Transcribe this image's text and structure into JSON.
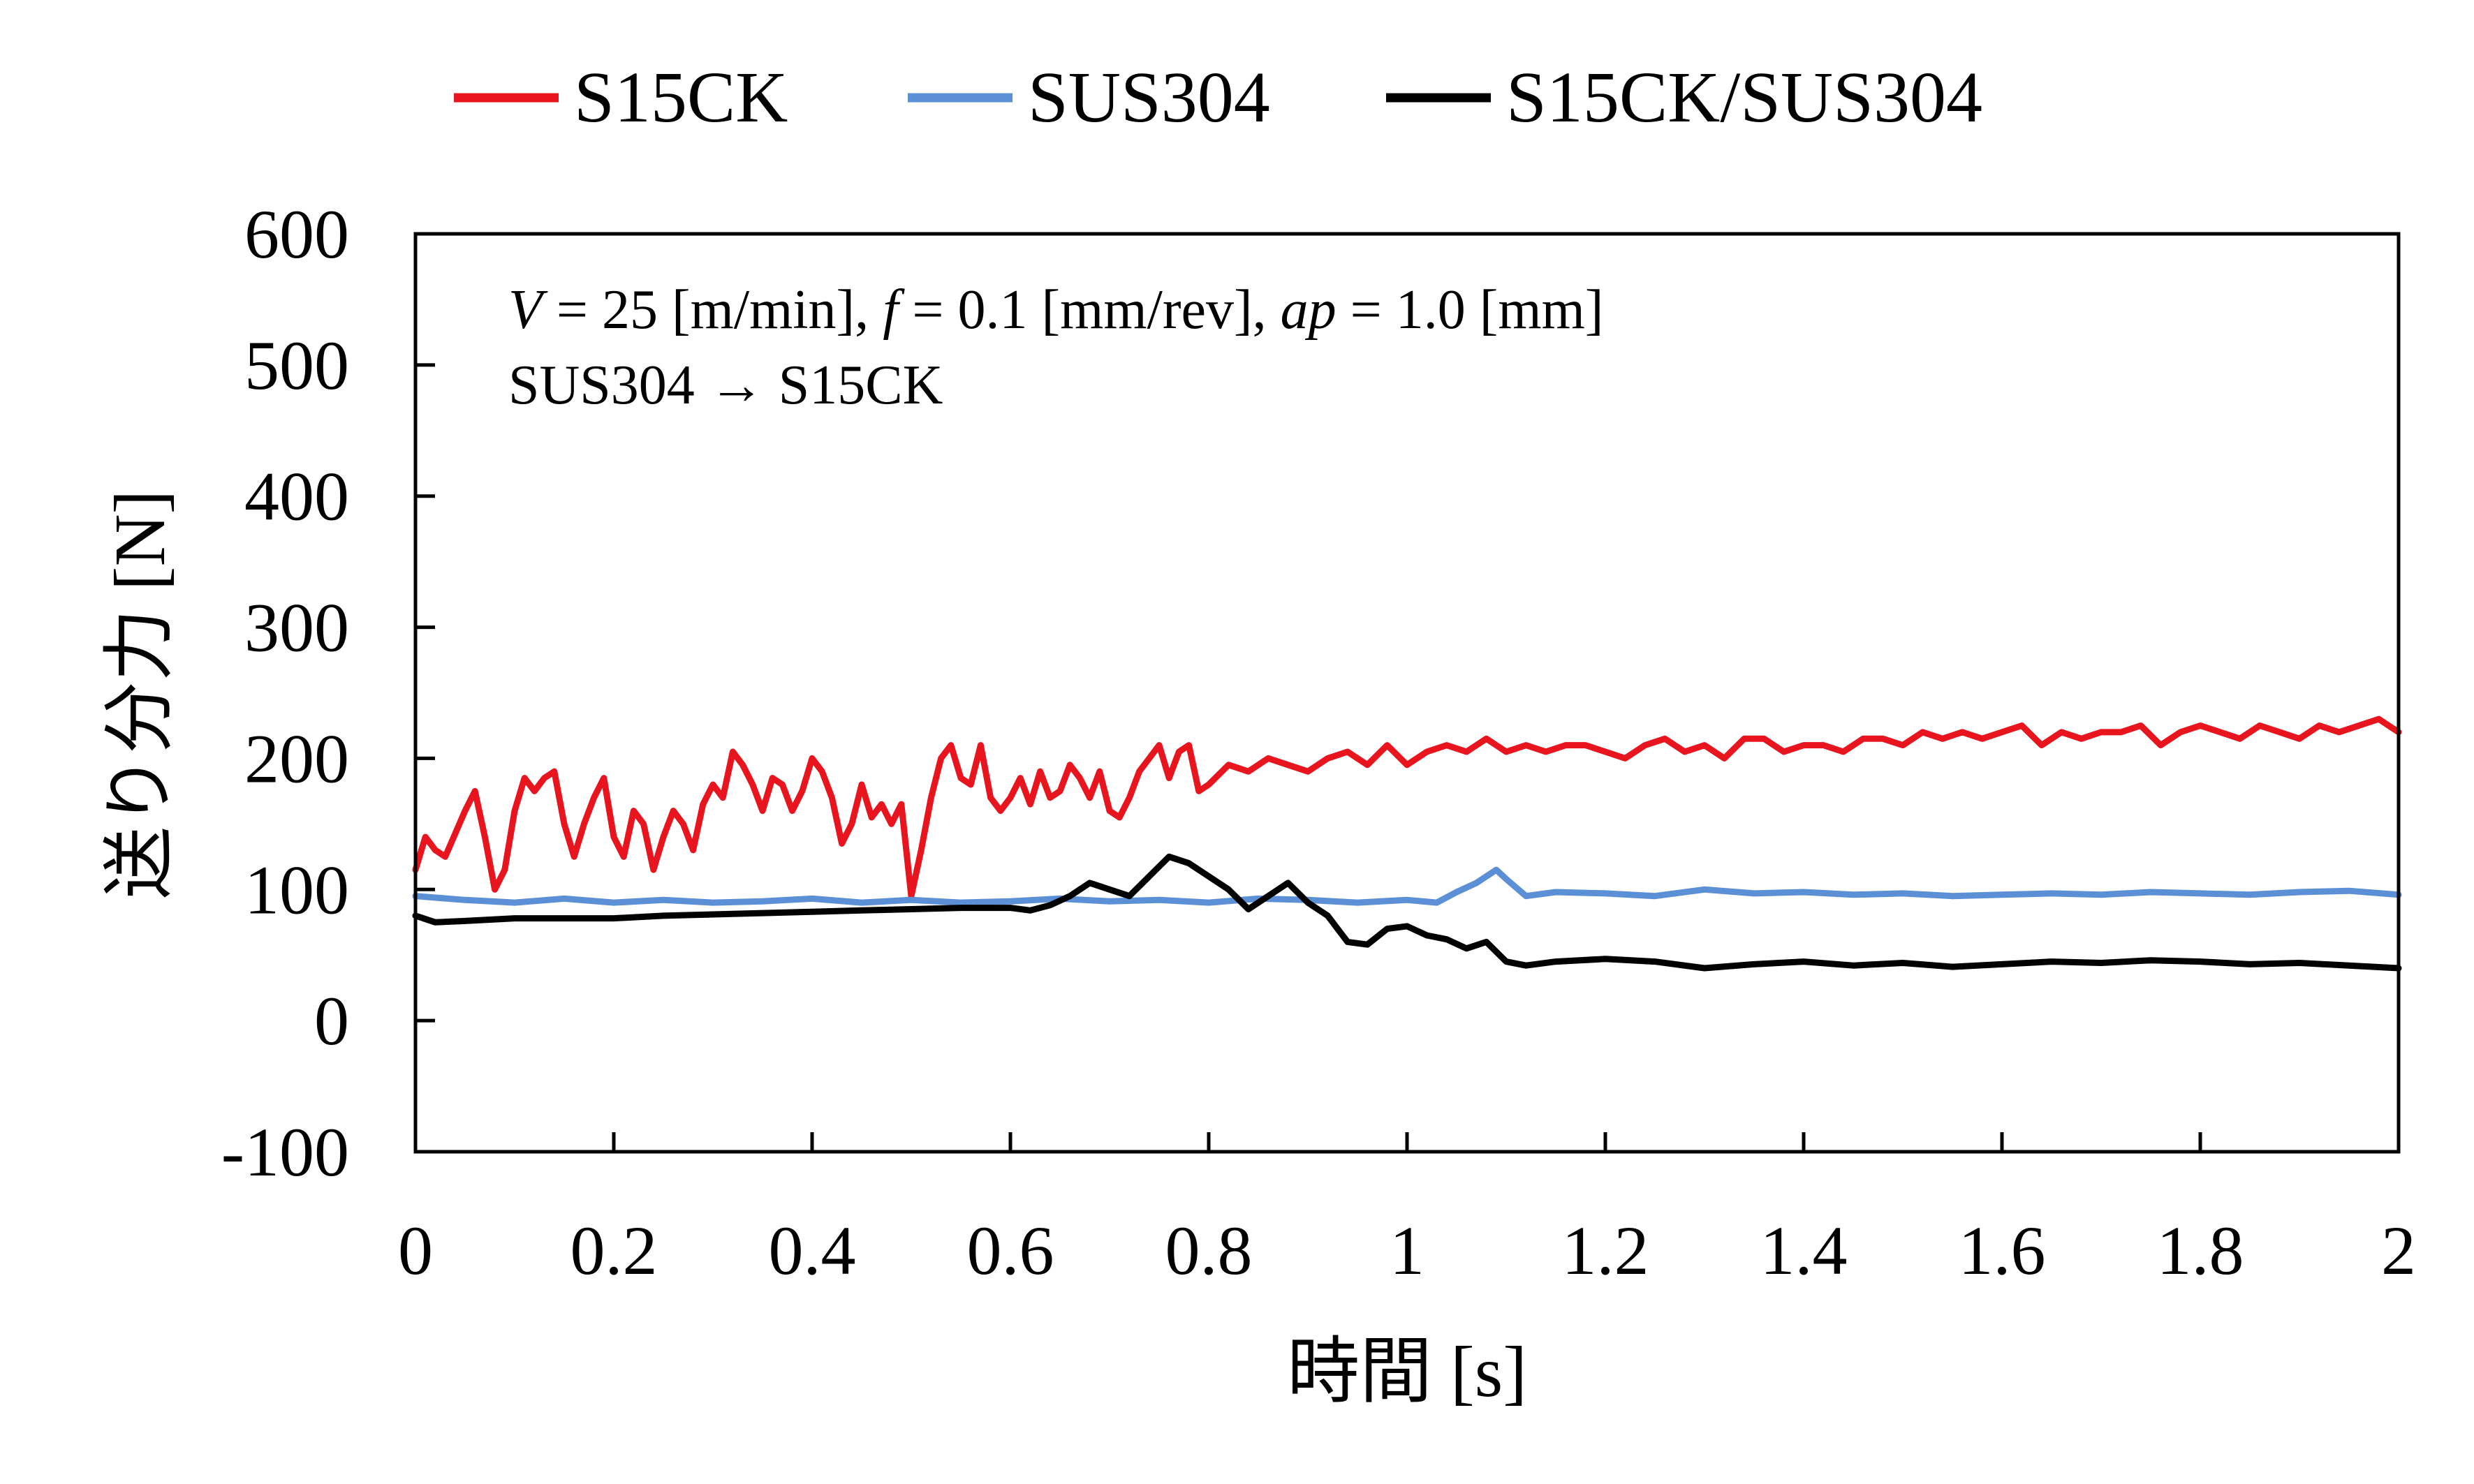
{
  "chart_data": {
    "type": "line",
    "title": "",
    "xlabel": "時間 [s]",
    "ylabel": "送り分力 [N]",
    "xlim": [
      0,
      2
    ],
    "ylim": [
      -100,
      600
    ],
    "xticks": [
      "0",
      "0.2",
      "0.4",
      "0.6",
      "0.8",
      "1",
      "1.2",
      "1.4",
      "1.6",
      "1.8",
      "2"
    ],
    "yticks": [
      "-100",
      "0",
      "100",
      "200",
      "300",
      "400",
      "500",
      "600"
    ],
    "legend": {
      "position": "top-center"
    },
    "grid": false,
    "annotations": {
      "conditions": {
        "v_sym": "V",
        "v_val": " = 25 [m/min], ",
        "f_sym": "f",
        "f_val": " = 0.1 [mm/rev], ",
        "ap_sym": "ap",
        "ap_val": " = 1.0 [mm]"
      },
      "direction": "SUS304 → S15CK"
    },
    "series": [
      {
        "name": "S15CK",
        "color": "#e8141e",
        "points": [
          [
            0,
            115
          ],
          [
            0.01,
            140
          ],
          [
            0.02,
            130
          ],
          [
            0.03,
            125
          ],
          [
            0.05,
            160
          ],
          [
            0.06,
            175
          ],
          [
            0.07,
            140
          ],
          [
            0.08,
            100
          ],
          [
            0.09,
            115
          ],
          [
            0.1,
            160
          ],
          [
            0.11,
            185
          ],
          [
            0.12,
            175
          ],
          [
            0.13,
            185
          ],
          [
            0.14,
            190
          ],
          [
            0.15,
            150
          ],
          [
            0.16,
            125
          ],
          [
            0.17,
            150
          ],
          [
            0.18,
            170
          ],
          [
            0.19,
            185
          ],
          [
            0.2,
            140
          ],
          [
            0.21,
            125
          ],
          [
            0.22,
            160
          ],
          [
            0.23,
            150
          ],
          [
            0.24,
            115
          ],
          [
            0.25,
            140
          ],
          [
            0.26,
            160
          ],
          [
            0.27,
            150
          ],
          [
            0.28,
            130
          ],
          [
            0.29,
            165
          ],
          [
            0.3,
            180
          ],
          [
            0.31,
            170
          ],
          [
            0.32,
            205
          ],
          [
            0.33,
            195
          ],
          [
            0.34,
            180
          ],
          [
            0.35,
            160
          ],
          [
            0.36,
            185
          ],
          [
            0.37,
            180
          ],
          [
            0.38,
            160
          ],
          [
            0.39,
            175
          ],
          [
            0.4,
            200
          ],
          [
            0.41,
            190
          ],
          [
            0.42,
            170
          ],
          [
            0.43,
            135
          ],
          [
            0.44,
            150
          ],
          [
            0.45,
            180
          ],
          [
            0.46,
            155
          ],
          [
            0.47,
            165
          ],
          [
            0.48,
            150
          ],
          [
            0.49,
            165
          ],
          [
            0.5,
            95
          ],
          [
            0.51,
            130
          ],
          [
            0.52,
            170
          ],
          [
            0.53,
            200
          ],
          [
            0.54,
            210
          ],
          [
            0.55,
            185
          ],
          [
            0.56,
            180
          ],
          [
            0.57,
            210
          ],
          [
            0.58,
            170
          ],
          [
            0.59,
            160
          ],
          [
            0.6,
            170
          ],
          [
            0.61,
            185
          ],
          [
            0.62,
            165
          ],
          [
            0.63,
            190
          ],
          [
            0.64,
            170
          ],
          [
            0.65,
            175
          ],
          [
            0.66,
            195
          ],
          [
            0.67,
            185
          ],
          [
            0.68,
            170
          ],
          [
            0.69,
            190
          ],
          [
            0.7,
            160
          ],
          [
            0.71,
            155
          ],
          [
            0.72,
            170
          ],
          [
            0.73,
            190
          ],
          [
            0.74,
            200
          ],
          [
            0.75,
            210
          ],
          [
            0.76,
            185
          ],
          [
            0.77,
            205
          ],
          [
            0.78,
            210
          ],
          [
            0.79,
            175
          ],
          [
            0.8,
            180
          ],
          [
            0.82,
            195
          ],
          [
            0.84,
            190
          ],
          [
            0.86,
            200
          ],
          [
            0.88,
            195
          ],
          [
            0.9,
            190
          ],
          [
            0.92,
            200
          ],
          [
            0.94,
            205
          ],
          [
            0.96,
            195
          ],
          [
            0.98,
            210
          ],
          [
            1.0,
            195
          ],
          [
            1.02,
            205
          ],
          [
            1.04,
            210
          ],
          [
            1.06,
            205
          ],
          [
            1.08,
            215
          ],
          [
            1.1,
            205
          ],
          [
            1.12,
            210
          ],
          [
            1.14,
            205
          ],
          [
            1.16,
            210
          ],
          [
            1.18,
            210
          ],
          [
            1.2,
            205
          ],
          [
            1.22,
            200
          ],
          [
            1.24,
            210
          ],
          [
            1.26,
            215
          ],
          [
            1.28,
            205
          ],
          [
            1.3,
            210
          ],
          [
            1.32,
            200
          ],
          [
            1.34,
            215
          ],
          [
            1.36,
            215
          ],
          [
            1.38,
            205
          ],
          [
            1.4,
            210
          ],
          [
            1.42,
            210
          ],
          [
            1.44,
            205
          ],
          [
            1.46,
            215
          ],
          [
            1.48,
            215
          ],
          [
            1.5,
            210
          ],
          [
            1.52,
            220
          ],
          [
            1.54,
            215
          ],
          [
            1.56,
            220
          ],
          [
            1.58,
            215
          ],
          [
            1.6,
            220
          ],
          [
            1.62,
            225
          ],
          [
            1.64,
            210
          ],
          [
            1.66,
            220
          ],
          [
            1.68,
            215
          ],
          [
            1.7,
            220
          ],
          [
            1.72,
            220
          ],
          [
            1.74,
            225
          ],
          [
            1.76,
            210
          ],
          [
            1.78,
            220
          ],
          [
            1.8,
            225
          ],
          [
            1.82,
            220
          ],
          [
            1.84,
            215
          ],
          [
            1.86,
            225
          ],
          [
            1.88,
            220
          ],
          [
            1.9,
            215
          ],
          [
            1.92,
            225
          ],
          [
            1.94,
            220
          ],
          [
            1.96,
            225
          ],
          [
            1.98,
            230
          ],
          [
            2.0,
            220
          ]
        ]
      },
      {
        "name": "SUS304",
        "color": "#5b8fd6",
        "points": [
          [
            0,
            95
          ],
          [
            0.05,
            92
          ],
          [
            0.1,
            90
          ],
          [
            0.15,
            93
          ],
          [
            0.2,
            90
          ],
          [
            0.25,
            92
          ],
          [
            0.3,
            90
          ],
          [
            0.35,
            91
          ],
          [
            0.4,
            93
          ],
          [
            0.45,
            90
          ],
          [
            0.5,
            92
          ],
          [
            0.55,
            90
          ],
          [
            0.6,
            91
          ],
          [
            0.65,
            93
          ],
          [
            0.7,
            91
          ],
          [
            0.75,
            92
          ],
          [
            0.8,
            90
          ],
          [
            0.85,
            93
          ],
          [
            0.9,
            92
          ],
          [
            0.95,
            90
          ],
          [
            1.0,
            92
          ],
          [
            1.03,
            90
          ],
          [
            1.05,
            98
          ],
          [
            1.07,
            105
          ],
          [
            1.09,
            115
          ],
          [
            1.1,
            108
          ],
          [
            1.12,
            95
          ],
          [
            1.15,
            98
          ],
          [
            1.2,
            97
          ],
          [
            1.25,
            95
          ],
          [
            1.3,
            100
          ],
          [
            1.35,
            97
          ],
          [
            1.4,
            98
          ],
          [
            1.45,
            96
          ],
          [
            1.5,
            97
          ],
          [
            1.55,
            95
          ],
          [
            1.6,
            96
          ],
          [
            1.65,
            97
          ],
          [
            1.7,
            96
          ],
          [
            1.75,
            98
          ],
          [
            1.8,
            97
          ],
          [
            1.85,
            96
          ],
          [
            1.9,
            98
          ],
          [
            1.95,
            99
          ],
          [
            2.0,
            96
          ]
        ]
      },
      {
        "name": "S15CK/SUS304",
        "color": "#000000",
        "points": [
          [
            0,
            80
          ],
          [
            0.02,
            75
          ],
          [
            0.05,
            76
          ],
          [
            0.1,
            78
          ],
          [
            0.15,
            78
          ],
          [
            0.2,
            78
          ],
          [
            0.25,
            80
          ],
          [
            0.3,
            81
          ],
          [
            0.35,
            82
          ],
          [
            0.4,
            83
          ],
          [
            0.45,
            84
          ],
          [
            0.5,
            85
          ],
          [
            0.55,
            86
          ],
          [
            0.6,
            86
          ],
          [
            0.62,
            84
          ],
          [
            0.64,
            88
          ],
          [
            0.66,
            95
          ],
          [
            0.68,
            105
          ],
          [
            0.7,
            100
          ],
          [
            0.72,
            95
          ],
          [
            0.74,
            110
          ],
          [
            0.76,
            125
          ],
          [
            0.78,
            120
          ],
          [
            0.8,
            110
          ],
          [
            0.82,
            100
          ],
          [
            0.84,
            85
          ],
          [
            0.86,
            95
          ],
          [
            0.88,
            105
          ],
          [
            0.9,
            90
          ],
          [
            0.92,
            80
          ],
          [
            0.94,
            60
          ],
          [
            0.96,
            58
          ],
          [
            0.98,
            70
          ],
          [
            1.0,
            72
          ],
          [
            1.02,
            65
          ],
          [
            1.04,
            62
          ],
          [
            1.06,
            55
          ],
          [
            1.08,
            60
          ],
          [
            1.1,
            45
          ],
          [
            1.12,
            42
          ],
          [
            1.15,
            45
          ],
          [
            1.2,
            47
          ],
          [
            1.25,
            45
          ],
          [
            1.3,
            40
          ],
          [
            1.35,
            43
          ],
          [
            1.4,
            45
          ],
          [
            1.45,
            42
          ],
          [
            1.5,
            44
          ],
          [
            1.55,
            41
          ],
          [
            1.6,
            43
          ],
          [
            1.65,
            45
          ],
          [
            1.7,
            44
          ],
          [
            1.75,
            46
          ],
          [
            1.8,
            45
          ],
          [
            1.85,
            43
          ],
          [
            1.9,
            44
          ],
          [
            1.95,
            42
          ],
          [
            2.0,
            40
          ]
        ]
      }
    ]
  }
}
